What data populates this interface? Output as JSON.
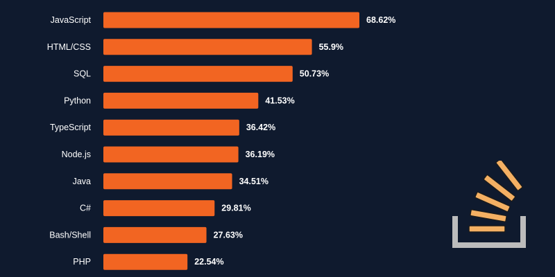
{
  "chart_data": {
    "type": "bar",
    "orientation": "horizontal",
    "categories": [
      "JavaScript",
      "HTML/CSS",
      "SQL",
      "Python",
      "TypeScript",
      "Node.js",
      "Java",
      "C#",
      "Bash/Shell",
      "PHP"
    ],
    "values": [
      68.62,
      55.9,
      50.73,
      41.53,
      36.42,
      36.19,
      34.51,
      29.81,
      27.63,
      22.54
    ],
    "value_labels": [
      "68.62%",
      "55.9%",
      "50.73%",
      "41.53%",
      "36.42%",
      "36.19%",
      "34.51%",
      "29.81%",
      "27.63%",
      "22.54%"
    ],
    "title": "",
    "xlabel": "",
    "ylabel": "",
    "xlim": [
      0,
      68.62
    ],
    "grid": false,
    "legend": "none"
  },
  "colors": {
    "background": "#0f1a2e",
    "bar": "#f26522",
    "text": "#ffffff",
    "logo_tray": "#bcbcbc",
    "logo_lines": "#f4b063"
  },
  "logo": {
    "icon": "stack-overflow-logo-icon"
  }
}
